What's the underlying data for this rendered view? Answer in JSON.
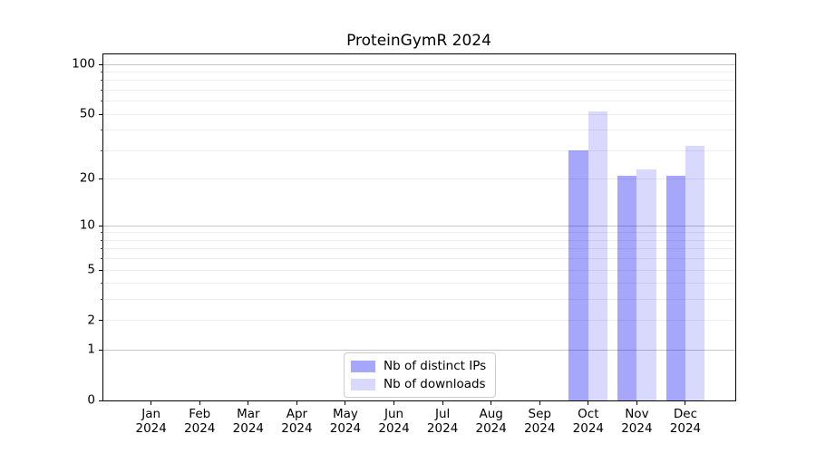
{
  "chart_data": {
    "type": "bar",
    "title": "ProteinGymR 2024",
    "x_axis": {
      "months": [
        "Jan",
        "Feb",
        "Mar",
        "Apr",
        "May",
        "Jun",
        "Jul",
        "Aug",
        "Sep",
        "Oct",
        "Nov",
        "Dec"
      ],
      "year": "2024"
    },
    "y_axis": {
      "scale": "log1p",
      "tick_labels": [
        0,
        1,
        2,
        5,
        10,
        20,
        50,
        100
      ],
      "major_gridlines": [
        1,
        10,
        100
      ],
      "minor_gridlines": [
        2,
        3,
        4,
        5,
        6,
        7,
        8,
        9,
        20,
        30,
        40,
        50,
        60,
        70,
        80,
        90
      ],
      "range": [
        0,
        100
      ],
      "grid": "on"
    },
    "series": [
      {
        "name": "Nb of distinct IPs",
        "color_hex": "#a6a6fa",
        "css_color": "rgba(0,0,240,0.35)",
        "values": [
          0,
          0,
          0,
          0,
          0,
          0,
          0,
          0,
          0,
          30,
          21,
          21
        ]
      },
      {
        "name": "Nb of downloads",
        "color_hex": "#d9d9fc",
        "css_color": "rgba(0,0,240,0.15)",
        "values": [
          0,
          0,
          0,
          0,
          0,
          0,
          0,
          0,
          0,
          52,
          23,
          32
        ]
      }
    ],
    "legend": {
      "position": "bottom-center",
      "entries": [
        "Nb of distinct IPs",
        "Nb of downloads"
      ]
    }
  },
  "colors": {
    "background": "#ffffff",
    "spine": "#000000",
    "major_grid": "#c6c6c6",
    "minor_grid": "#ededed",
    "legend_border": "#cccccc"
  }
}
